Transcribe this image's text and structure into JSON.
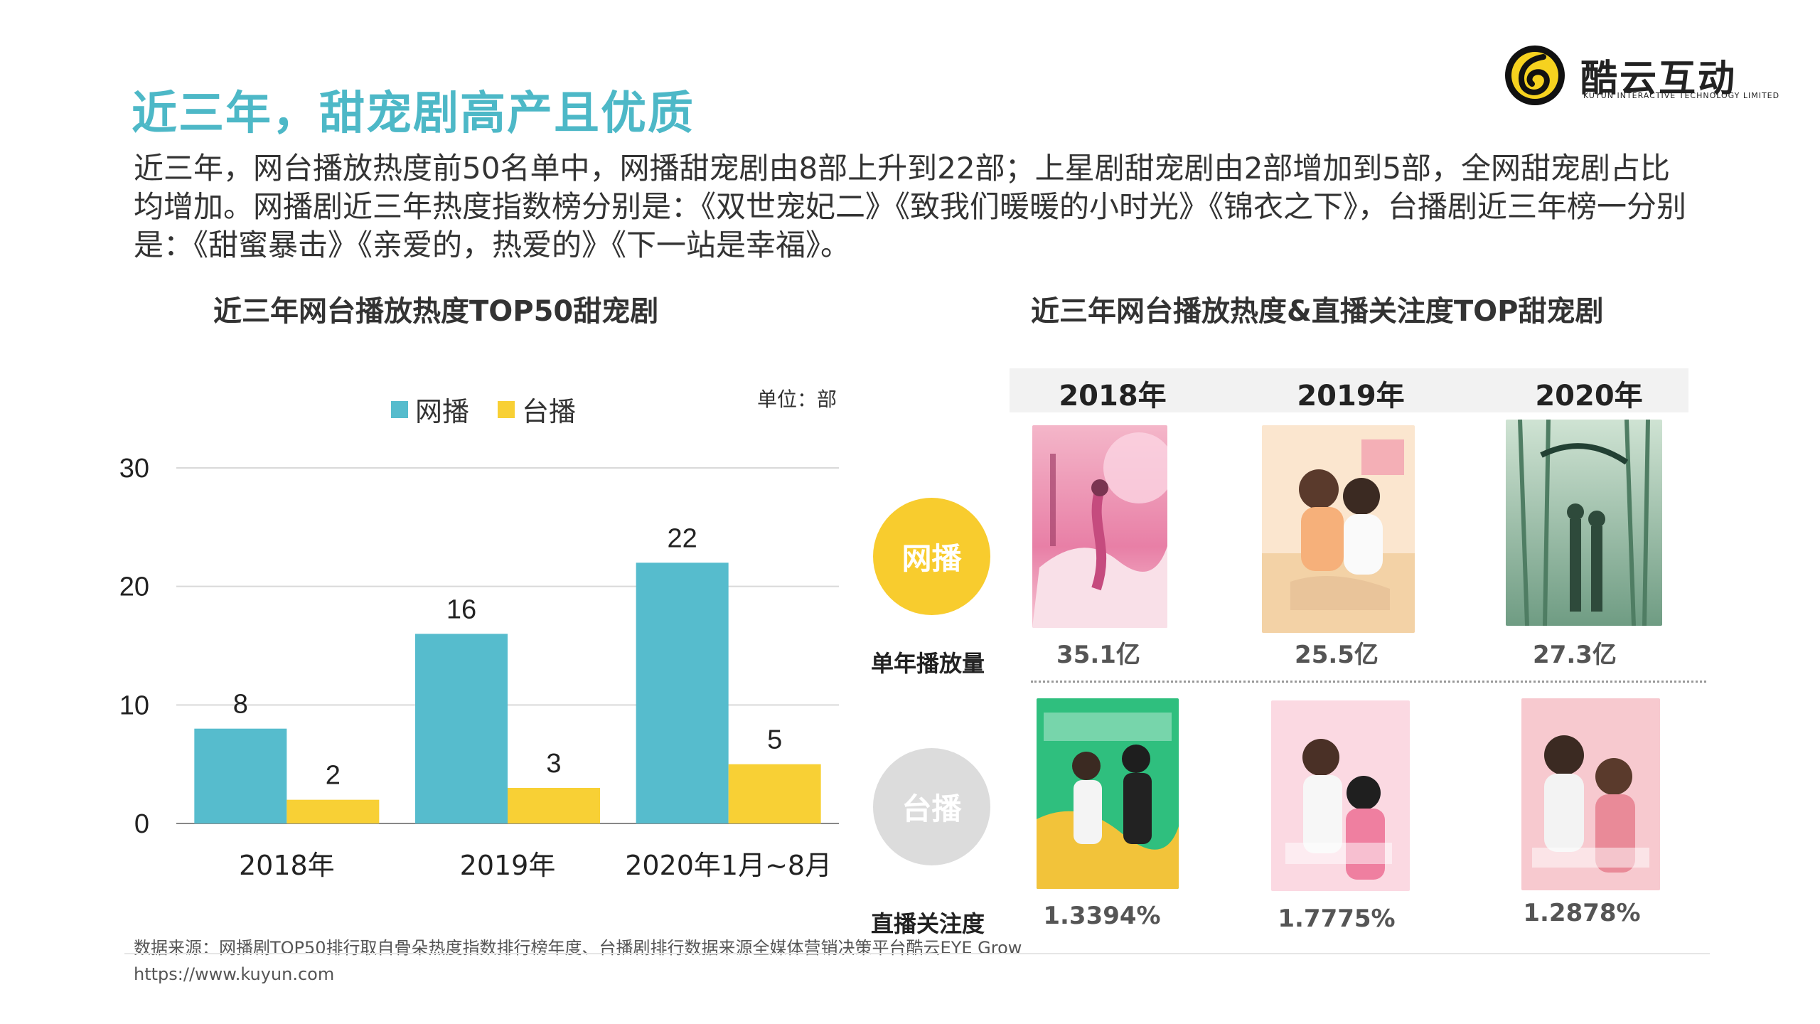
{
  "title": "近三年，甜宠剧高产且优质",
  "intro": "近三年，网台播放热度前50名单中，网播甜宠剧由8部上升到22部；上星剧甜宠剧由2部增加到5部，全网甜宠剧占比均增加。网播剧近三年热度指数榜分别是：《双世宠妃二》《致我们暖暖的小时光》《锦衣之下》，台播剧近三年榜一分别是：《甜蜜暴击》《亲爱的，热爱的》《下一站是幸福》。",
  "logo": {
    "name": "酷云互动",
    "sub": "KUYUN INTERACTIVE TECHNOLOGY LIMITED"
  },
  "left_chart_title": "近三年网台播放热度TOP50甜宠剧",
  "right_chart_title": "近三年网台播放热度&直播关注度TOP甜宠剧",
  "unit": "单位：部",
  "colors": {
    "online": "#56bccd",
    "tv": "#f8d035",
    "title": "#4db8c7"
  },
  "chart_data": {
    "type": "bar",
    "categories": [
      "2018年",
      "2019年",
      "2020年1月~8月"
    ],
    "series": [
      {
        "name": "网播",
        "values": [
          8,
          16,
          22
        ]
      },
      {
        "name": "台播",
        "values": [
          2,
          3,
          5
        ]
      }
    ],
    "ylim": [
      0,
      30
    ],
    "yticks": [
      "0",
      "10",
      "20",
      "30"
    ],
    "grid": true,
    "legend": "top"
  },
  "right_panel": {
    "years": [
      "2018年",
      "2019年",
      "2020年"
    ],
    "online_label": "网播",
    "tv_label": "台播",
    "metric1_label": "单年播放量",
    "metric2_label": "直播关注度",
    "online_views": [
      "35.1亿",
      "25.5亿",
      "27.3亿"
    ],
    "tv_attention": [
      "1.3394%",
      "1.7775%",
      "1.2878%"
    ]
  },
  "source": "数据来源：网播剧TOP50排行取自骨朵热度指数排行榜年度、台播剧排行数据来源全媒体营销决策平台酷云EYE Grow",
  "url": "https://www.kuyun.com"
}
